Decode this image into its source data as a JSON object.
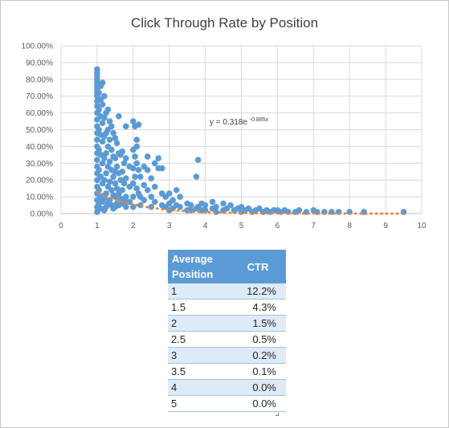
{
  "chart_data": {
    "type": "scatter",
    "title": "Click Through Rate by Position",
    "xlabel": "",
    "ylabel": "",
    "xlim": [
      0,
      10
    ],
    "ylim": [
      0,
      1
    ],
    "x_ticks": [
      "0",
      "1",
      "2",
      "3",
      "4",
      "5",
      "6",
      "7",
      "8",
      "9",
      "10"
    ],
    "y_ticks": [
      "0.00%",
      "10.00%",
      "20.00%",
      "30.00%",
      "40.00%",
      "50.00%",
      "60.00%",
      "70.00%",
      "80.00%",
      "90.00%",
      "100.00%"
    ],
    "grid": true,
    "legend": "none",
    "point_color": "#5b9bd5",
    "trend_color": "#ed7d31",
    "trendline": {
      "type": "exponential",
      "coefficient": 0.318,
      "rate": -0.885,
      "equation_base": "y = 0.318e",
      "equation_exponent": "-0.885x"
    },
    "series": [
      {
        "points": [
          [
            1.0,
            0.86
          ],
          [
            1.0,
            0.84
          ],
          [
            1.0,
            0.82
          ],
          [
            1.0,
            0.8
          ],
          [
            1.0,
            0.78
          ],
          [
            1.0,
            0.76
          ],
          [
            1.0,
            0.74
          ],
          [
            1.0,
            0.72
          ],
          [
            1.0,
            0.7
          ],
          [
            1.0,
            0.67
          ],
          [
            1.0,
            0.64
          ],
          [
            1.0,
            0.6
          ],
          [
            1.0,
            0.56
          ],
          [
            1.0,
            0.52
          ],
          [
            1.0,
            0.48
          ],
          [
            1.0,
            0.44
          ],
          [
            1.0,
            0.4
          ],
          [
            1.0,
            0.36
          ],
          [
            1.0,
            0.32
          ],
          [
            1.0,
            0.28
          ],
          [
            1.0,
            0.24
          ],
          [
            1.0,
            0.2
          ],
          [
            1.0,
            0.16
          ],
          [
            1.0,
            0.12
          ],
          [
            1.0,
            0.08
          ],
          [
            1.0,
            0.04
          ],
          [
            1.0,
            0.01
          ],
          [
            1.05,
            0.72
          ],
          [
            1.05,
            0.62
          ],
          [
            1.05,
            0.5
          ],
          [
            1.05,
            0.38
          ],
          [
            1.05,
            0.26
          ],
          [
            1.05,
            0.14
          ],
          [
            1.05,
            0.06
          ],
          [
            1.1,
            0.76
          ],
          [
            1.1,
            0.68
          ],
          [
            1.1,
            0.58
          ],
          [
            1.1,
            0.47
          ],
          [
            1.1,
            0.35
          ],
          [
            1.1,
            0.22
          ],
          [
            1.1,
            0.1
          ],
          [
            1.1,
            0.03
          ],
          [
            1.15,
            0.78
          ],
          [
            1.15,
            0.65
          ],
          [
            1.15,
            0.54
          ],
          [
            1.15,
            0.43
          ],
          [
            1.15,
            0.3
          ],
          [
            1.15,
            0.18
          ],
          [
            1.15,
            0.07
          ],
          [
            1.2,
            0.7
          ],
          [
            1.2,
            0.57
          ],
          [
            1.2,
            0.46
          ],
          [
            1.2,
            0.33
          ],
          [
            1.2,
            0.2
          ],
          [
            1.2,
            0.09
          ],
          [
            1.2,
            0.02
          ],
          [
            1.25,
            0.6
          ],
          [
            1.25,
            0.48
          ],
          [
            1.25,
            0.36
          ],
          [
            1.25,
            0.24
          ],
          [
            1.25,
            0.12
          ],
          [
            1.25,
            0.04
          ],
          [
            1.3,
            0.62
          ],
          [
            1.3,
            0.5
          ],
          [
            1.3,
            0.4
          ],
          [
            1.3,
            0.28
          ],
          [
            1.3,
            0.16
          ],
          [
            1.3,
            0.06
          ],
          [
            1.35,
            0.55
          ],
          [
            1.35,
            0.44
          ],
          [
            1.35,
            0.31
          ],
          [
            1.35,
            0.19
          ],
          [
            1.35,
            0.08
          ],
          [
            1.4,
            0.52
          ],
          [
            1.4,
            0.38
          ],
          [
            1.4,
            0.26
          ],
          [
            1.4,
            0.14
          ],
          [
            1.4,
            0.05
          ],
          [
            1.45,
            0.48
          ],
          [
            1.45,
            0.34
          ],
          [
            1.45,
            0.22
          ],
          [
            1.45,
            0.11
          ],
          [
            1.45,
            0.03
          ],
          [
            1.5,
            0.45
          ],
          [
            1.5,
            0.33
          ],
          [
            1.5,
            0.25
          ],
          [
            1.5,
            0.18
          ],
          [
            1.5,
            0.1
          ],
          [
            1.5,
            0.04
          ],
          [
            1.55,
            0.42
          ],
          [
            1.55,
            0.28
          ],
          [
            1.55,
            0.15
          ],
          [
            1.55,
            0.06
          ],
          [
            1.6,
            0.58
          ],
          [
            1.6,
            0.36
          ],
          [
            1.6,
            0.24
          ],
          [
            1.6,
            0.12
          ],
          [
            1.6,
            0.05
          ],
          [
            1.65,
            0.35
          ],
          [
            1.65,
            0.2
          ],
          [
            1.65,
            0.09
          ],
          [
            1.7,
            0.37
          ],
          [
            1.7,
            0.25
          ],
          [
            1.7,
            0.14
          ],
          [
            1.7,
            0.06
          ],
          [
            1.75,
            0.3
          ],
          [
            1.75,
            0.18
          ],
          [
            1.75,
            0.08
          ],
          [
            1.8,
            0.52
          ],
          [
            1.8,
            0.33
          ],
          [
            1.8,
            0.21
          ],
          [
            1.8,
            0.1
          ],
          [
            1.8,
            0.04
          ],
          [
            1.9,
            0.28
          ],
          [
            1.9,
            0.16
          ],
          [
            1.9,
            0.07
          ],
          [
            2.0,
            0.55
          ],
          [
            2.0,
            0.38
          ],
          [
            2.0,
            0.27
          ],
          [
            2.0,
            0.18
          ],
          [
            2.0,
            0.1
          ],
          [
            2.0,
            0.04
          ],
          [
            2.05,
            0.52
          ],
          [
            2.05,
            0.34
          ],
          [
            2.05,
            0.22
          ],
          [
            2.1,
            0.44
          ],
          [
            2.1,
            0.4
          ],
          [
            2.1,
            0.3
          ],
          [
            2.1,
            0.15
          ],
          [
            2.15,
            0.53
          ],
          [
            2.15,
            0.26
          ],
          [
            2.15,
            0.12
          ],
          [
            2.2,
            0.22
          ],
          [
            2.2,
            0.1
          ],
          [
            2.2,
            0.05
          ],
          [
            2.3,
            0.28
          ],
          [
            2.3,
            0.17
          ],
          [
            2.3,
            0.08
          ],
          [
            2.4,
            0.34
          ],
          [
            2.4,
            0.26
          ],
          [
            2.4,
            0.14
          ],
          [
            2.5,
            0.21
          ],
          [
            2.5,
            0.1
          ],
          [
            2.5,
            0.04
          ],
          [
            2.6,
            0.3
          ],
          [
            2.6,
            0.16
          ],
          [
            2.6,
            0.07
          ],
          [
            2.7,
            0.33
          ],
          [
            2.7,
            0.27
          ],
          [
            2.8,
            0.27
          ],
          [
            2.8,
            0.12
          ],
          [
            2.8,
            0.05
          ],
          [
            2.9,
            0.1
          ],
          [
            2.9,
            0.04
          ],
          [
            3.0,
            0.12
          ],
          [
            3.0,
            0.06
          ],
          [
            3.0,
            0.02
          ],
          [
            3.1,
            0.08
          ],
          [
            3.1,
            0.03
          ],
          [
            3.2,
            0.14
          ],
          [
            3.2,
            0.05
          ],
          [
            3.3,
            0.1
          ],
          [
            3.3,
            0.04
          ],
          [
            3.5,
            0.06
          ],
          [
            3.5,
            0.02
          ],
          [
            3.6,
            0.05
          ],
          [
            3.6,
            0.02
          ],
          [
            3.75,
            0.22
          ],
          [
            3.75,
            0.03
          ],
          [
            3.8,
            0.32
          ],
          [
            3.8,
            0.04
          ],
          [
            3.9,
            0.06
          ],
          [
            3.9,
            0.02
          ],
          [
            4.0,
            0.05
          ],
          [
            4.0,
            0.02
          ],
          [
            4.2,
            0.07
          ],
          [
            4.2,
            0.03
          ],
          [
            4.3,
            0.04
          ],
          [
            4.3,
            0.01
          ],
          [
            4.5,
            0.06
          ],
          [
            4.5,
            0.02
          ],
          [
            4.6,
            0.03
          ],
          [
            4.7,
            0.05
          ],
          [
            4.8,
            0.02
          ],
          [
            4.9,
            0.03
          ],
          [
            5.0,
            0.04
          ],
          [
            5.0,
            0.01
          ],
          [
            5.1,
            0.02
          ],
          [
            5.2,
            0.03
          ],
          [
            5.3,
            0.01
          ],
          [
            5.4,
            0.02
          ],
          [
            5.5,
            0.03
          ],
          [
            5.6,
            0.01
          ],
          [
            5.7,
            0.02
          ],
          [
            5.8,
            0.01
          ],
          [
            5.9,
            0.02
          ],
          [
            6.0,
            0.02
          ],
          [
            6.1,
            0.01
          ],
          [
            6.2,
            0.02
          ],
          [
            6.3,
            0.01
          ],
          [
            6.5,
            0.01
          ],
          [
            6.6,
            0.02
          ],
          [
            6.8,
            0.01
          ],
          [
            7.0,
            0.02
          ],
          [
            7.1,
            0.01
          ],
          [
            7.3,
            0.01
          ],
          [
            7.5,
            0.01
          ],
          [
            7.7,
            0.01
          ],
          [
            8.0,
            0.01
          ],
          [
            8.4,
            0.01
          ],
          [
            9.5,
            0.01
          ]
        ]
      }
    ]
  },
  "table": {
    "headers": [
      "Average Position",
      "CTR"
    ],
    "header_line1": "Average",
    "header_line2": "Position",
    "rows": [
      {
        "position": "1",
        "ctr": "12.2%"
      },
      {
        "position": "1.5",
        "ctr": "4.3%"
      },
      {
        "position": "2",
        "ctr": "1.5%"
      },
      {
        "position": "2.5",
        "ctr": "0.5%"
      },
      {
        "position": "3",
        "ctr": "0.2%"
      },
      {
        "position": "3.5",
        "ctr": "0.1%"
      },
      {
        "position": "4",
        "ctr": "0.0%"
      },
      {
        "position": "5",
        "ctr": "0.0%"
      }
    ]
  }
}
